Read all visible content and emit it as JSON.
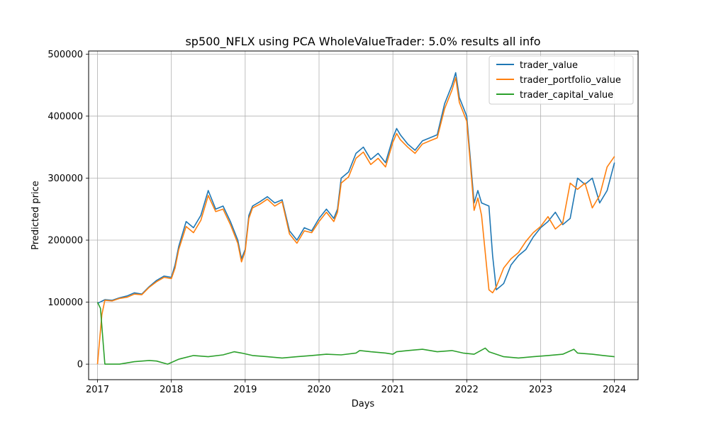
{
  "chart_data": {
    "type": "line",
    "title": "sp500_NFLX using PCA WholeValueTrader: 5.0% results all info",
    "xlabel": "Days",
    "ylabel": "Predicted price",
    "xlim": [
      2016.88,
      2024.32
    ],
    "ylim": [
      -25000,
      505000
    ],
    "xticks": [
      2017,
      2018,
      2019,
      2020,
      2021,
      2022,
      2023,
      2024
    ],
    "yticks": [
      0,
      100000,
      200000,
      300000,
      400000,
      500000
    ],
    "ytick_labels": [
      "0",
      "100000",
      "200000",
      "300000",
      "400000",
      "500000"
    ],
    "grid": true,
    "legend_position": "upper right",
    "legend": [
      {
        "name": "trader_value",
        "color": "#1f77b4"
      },
      {
        "name": "trader_portfolio_value",
        "color": "#ff7f0e"
      },
      {
        "name": "trader_capital_value",
        "color": "#2ca02c"
      }
    ],
    "series": [
      {
        "name": "trader_value",
        "color": "#1f77b4",
        "x": [
          2017.0,
          2017.05,
          2017.1,
          2017.2,
          2017.3,
          2017.4,
          2017.5,
          2017.6,
          2017.7,
          2017.8,
          2017.9,
          2018.0,
          2018.05,
          2018.1,
          2018.2,
          2018.3,
          2018.4,
          2018.5,
          2018.6,
          2018.7,
          2018.8,
          2018.9,
          2018.95,
          2019.0,
          2019.05,
          2019.1,
          2019.2,
          2019.3,
          2019.4,
          2019.5,
          2019.55,
          2019.6,
          2019.7,
          2019.75,
          2019.8,
          2019.9,
          2020.0,
          2020.1,
          2020.2,
          2020.25,
          2020.3,
          2020.4,
          2020.5,
          2020.6,
          2020.7,
          2020.8,
          2020.9,
          2021.0,
          2021.05,
          2021.1,
          2021.2,
          2021.3,
          2021.4,
          2021.5,
          2021.6,
          2021.7,
          2021.8,
          2021.85,
          2021.9,
          2022.0,
          2022.05,
          2022.1,
          2022.15,
          2022.2,
          2022.3,
          2022.35,
          2022.4,
          2022.5,
          2022.6,
          2022.7,
          2022.8,
          2022.9,
          2023.0,
          2023.1,
          2023.2,
          2023.3,
          2023.4,
          2023.5,
          2023.6,
          2023.7,
          2023.8,
          2023.9,
          2024.0
        ],
        "values": [
          98000,
          101000,
          104000,
          103000,
          107000,
          110000,
          115000,
          113000,
          125000,
          135000,
          142000,
          140000,
          160000,
          190000,
          230000,
          220000,
          240000,
          280000,
          250000,
          255000,
          230000,
          200000,
          170000,
          185000,
          240000,
          255000,
          262000,
          270000,
          260000,
          265000,
          240000,
          215000,
          200000,
          210000,
          220000,
          215000,
          235000,
          250000,
          235000,
          250000,
          300000,
          310000,
          340000,
          350000,
          330000,
          340000,
          325000,
          365000,
          380000,
          370000,
          355000,
          345000,
          360000,
          365000,
          370000,
          420000,
          450000,
          470000,
          430000,
          400000,
          330000,
          260000,
          280000,
          260000,
          255000,
          175000,
          120000,
          130000,
          160000,
          175000,
          185000,
          205000,
          220000,
          230000,
          245000,
          225000,
          235000,
          300000,
          290000,
          300000,
          260000,
          280000,
          325000
        ]
      },
      {
        "name": "trader_portfolio_value",
        "color": "#ff7f0e",
        "x": [
          2017.0,
          2017.03,
          2017.06,
          2017.1,
          2017.2,
          2017.3,
          2017.4,
          2017.5,
          2017.6,
          2017.7,
          2017.8,
          2017.9,
          2018.0,
          2018.05,
          2018.1,
          2018.2,
          2018.3,
          2018.4,
          2018.5,
          2018.6,
          2018.7,
          2018.8,
          2018.9,
          2018.95,
          2019.0,
          2019.05,
          2019.1,
          2019.2,
          2019.3,
          2019.4,
          2019.5,
          2019.55,
          2019.6,
          2019.7,
          2019.75,
          2019.8,
          2019.9,
          2020.0,
          2020.1,
          2020.2,
          2020.25,
          2020.3,
          2020.4,
          2020.5,
          2020.6,
          2020.7,
          2020.8,
          2020.9,
          2021.0,
          2021.05,
          2021.1,
          2021.2,
          2021.3,
          2021.4,
          2021.5,
          2021.6,
          2021.7,
          2021.8,
          2021.85,
          2021.9,
          2022.0,
          2022.05,
          2022.1,
          2022.15,
          2022.2,
          2022.3,
          2022.35,
          2022.4,
          2022.5,
          2022.6,
          2022.7,
          2022.8,
          2022.9,
          2023.0,
          2023.1,
          2023.2,
          2023.3,
          2023.4,
          2023.5,
          2023.6,
          2023.7,
          2023.8,
          2023.9,
          2024.0
        ],
        "values": [
          0,
          40000,
          80000,
          103000,
          102000,
          106000,
          108000,
          113000,
          112000,
          124000,
          133000,
          140000,
          138000,
          155000,
          185000,
          222000,
          212000,
          232000,
          272000,
          246000,
          250000,
          225000,
          195000,
          165000,
          182000,
          235000,
          252000,
          258000,
          266000,
          255000,
          262000,
          236000,
          210000,
          195000,
          205000,
          215000,
          212000,
          230000,
          245000,
          230000,
          245000,
          292000,
          302000,
          332000,
          342000,
          322000,
          332000,
          318000,
          358000,
          372000,
          362000,
          350000,
          340000,
          355000,
          360000,
          365000,
          412000,
          442000,
          462000,
          422000,
          392000,
          322000,
          248000,
          268000,
          240000,
          120000,
          115000,
          125000,
          155000,
          170000,
          180000,
          198000,
          212000,
          222000,
          238000,
          218000,
          228000,
          292000,
          282000,
          292000,
          252000,
          272000,
          318000,
          335000
        ]
      },
      {
        "name": "trader_capital_value",
        "color": "#2ca02c",
        "x": [
          2017.0,
          2017.04,
          2017.08,
          2017.1,
          2017.3,
          2017.5,
          2017.7,
          2017.8,
          2017.95,
          2018.1,
          2018.3,
          2018.5,
          2018.7,
          2018.85,
          2018.95,
          2019.1,
          2019.3,
          2019.5,
          2019.7,
          2019.9,
          2020.1,
          2020.3,
          2020.5,
          2020.55,
          2020.7,
          2020.9,
          2021.0,
          2021.05,
          2021.2,
          2021.4,
          2021.6,
          2021.8,
          2021.95,
          2022.1,
          2022.25,
          2022.3,
          2022.5,
          2022.7,
          2022.9,
          2023.1,
          2023.3,
          2023.45,
          2023.5,
          2023.7,
          2023.85,
          2024.0
        ],
        "values": [
          100000,
          90000,
          30000,
          0,
          0,
          4000,
          6000,
          5000,
          0,
          8000,
          14000,
          12000,
          15000,
          20000,
          18000,
          14000,
          12000,
          10000,
          12000,
          14000,
          16000,
          15000,
          18000,
          22000,
          20000,
          18000,
          16000,
          20000,
          22000,
          24000,
          20000,
          22000,
          18000,
          16000,
          26000,
          20000,
          12000,
          10000,
          12000,
          14000,
          16000,
          24000,
          18000,
          16000,
          14000,
          12000
        ]
      }
    ]
  }
}
